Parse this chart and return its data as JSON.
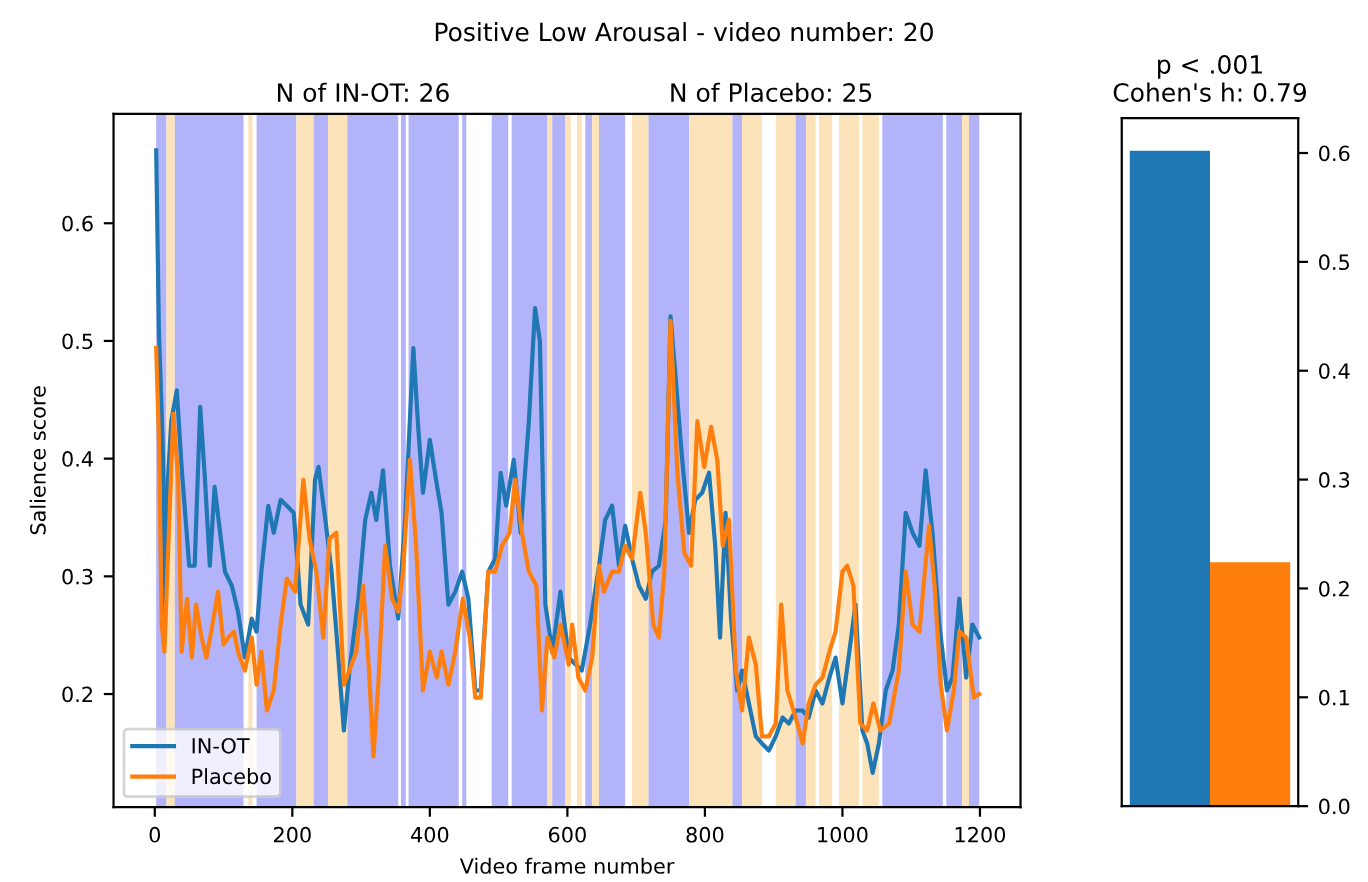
{
  "chart_data": [
    {
      "type": "line",
      "title": "Positive Low Arousal - video number: 20",
      "annotations": [
        "N of IN-OT: 26",
        "N of Placebo: 25"
      ],
      "xlabel": "Video frame number",
      "ylabel": "Salience score",
      "xlim": [
        -60,
        1259
      ],
      "ylim": [
        0.104,
        0.693
      ],
      "xticks": [
        0,
        200,
        400,
        600,
        800,
        1000,
        1200
      ],
      "yticks": [
        0.2,
        0.3,
        0.4,
        0.5,
        0.6
      ],
      "grid": false,
      "legend": "bottom left",
      "series": [
        {
          "name": "IN-OT",
          "color": "#1f77b4",
          "x": [
            2,
            6,
            12,
            15,
            19,
            24,
            32,
            39,
            50,
            58,
            66,
            73,
            80,
            87,
            95,
            102,
            112,
            121,
            131,
            141,
            148,
            155,
            165,
            173,
            183,
            192,
            202,
            212,
            223,
            233,
            238,
            248,
            257,
            267,
            275,
            283,
            296,
            306,
            315,
            322,
            332,
            342,
            354,
            364,
            376,
            383,
            390,
            400,
            409,
            417,
            427,
            437,
            447,
            456,
            466,
            474,
            485,
            495,
            503,
            511,
            522,
            532,
            544,
            553,
            560,
            568,
            578,
            590,
            602,
            612,
            621,
            633,
            646,
            655,
            665,
            675,
            684,
            694,
            704,
            714,
            723,
            733,
            743,
            750,
            757,
            767,
            777,
            786,
            796,
            806,
            815,
            822,
            830,
            838,
            847,
            854,
            864,
            874,
            883,
            893,
            903,
            913,
            922,
            932,
            942,
            951,
            961,
            971,
            981,
            990,
            1000,
            1010,
            1019,
            1029,
            1036,
            1044,
            1053,
            1063,
            1073,
            1082,
            1092,
            1102,
            1112,
            1121,
            1131,
            1141,
            1152,
            1160,
            1170,
            1180,
            1189,
            1199
          ],
          "values": [
            0.662,
            0.508,
            0.404,
            0.265,
            0.382,
            0.432,
            0.458,
            0.393,
            0.309,
            0.309,
            0.444,
            0.382,
            0.309,
            0.376,
            0.337,
            0.304,
            0.292,
            0.27,
            0.231,
            0.264,
            0.253,
            0.304,
            0.36,
            0.337,
            0.365,
            0.36,
            0.354,
            0.276,
            0.259,
            0.382,
            0.393,
            0.348,
            0.304,
            0.231,
            0.169,
            0.22,
            0.281,
            0.348,
            0.371,
            0.348,
            0.39,
            0.309,
            0.264,
            0.348,
            0.494,
            0.427,
            0.371,
            0.416,
            0.382,
            0.354,
            0.276,
            0.287,
            0.304,
            0.281,
            0.203,
            0.203,
            0.304,
            0.315,
            0.388,
            0.36,
            0.399,
            0.337,
            0.432,
            0.528,
            0.5,
            0.276,
            0.236,
            0.287,
            0.231,
            0.225,
            0.22,
            0.259,
            0.309,
            0.348,
            0.36,
            0.309,
            0.343,
            0.315,
            0.292,
            0.281,
            0.304,
            0.309,
            0.348,
            0.521,
            0.472,
            0.399,
            0.337,
            0.365,
            0.371,
            0.388,
            0.326,
            0.248,
            0.354,
            0.264,
            0.203,
            0.22,
            0.192,
            0.164,
            0.158,
            0.152,
            0.164,
            0.18,
            0.175,
            0.186,
            0.186,
            0.18,
            0.203,
            0.192,
            0.214,
            0.231,
            0.192,
            0.236,
            0.276,
            0.169,
            0.158,
            0.133,
            0.158,
            0.203,
            0.22,
            0.259,
            0.354,
            0.337,
            0.326,
            0.39,
            0.337,
            0.259,
            0.203,
            0.214,
            0.281,
            0.214,
            0.259,
            0.248
          ]
        },
        {
          "name": "Placebo",
          "color": "#ff7f0e",
          "x": [
            2,
            6,
            10,
            14,
            19,
            27,
            34,
            39,
            47,
            54,
            60,
            68,
            75,
            82,
            92,
            100,
            107,
            115,
            121,
            131,
            141,
            148,
            155,
            163,
            173,
            183,
            192,
            204,
            216,
            225,
            235,
            245,
            254,
            264,
            275,
            283,
            293,
            303,
            311,
            318,
            325,
            335,
            345,
            354,
            361,
            371,
            380,
            390,
            400,
            410,
            417,
            427,
            437,
            448,
            458,
            466,
            474,
            485,
            495,
            505,
            516,
            524,
            534,
            544,
            555,
            563,
            571,
            581,
            590,
            602,
            607,
            616,
            626,
            636,
            646,
            653,
            665,
            675,
            684,
            694,
            706,
            714,
            725,
            733,
            741,
            750,
            760,
            770,
            780,
            789,
            799,
            809,
            818,
            826,
            835,
            845,
            854,
            864,
            874,
            883,
            893,
            903,
            911,
            920,
            932,
            942,
            951,
            961,
            971,
            981,
            990,
            1000,
            1007,
            1016,
            1026,
            1036,
            1045,
            1055,
            1068,
            1082,
            1092,
            1102,
            1112,
            1126,
            1134,
            1143,
            1152,
            1162,
            1170,
            1180,
            1191,
            1199
          ],
          "values": [
            0.494,
            0.416,
            0.259,
            0.236,
            0.315,
            0.438,
            0.382,
            0.236,
            0.281,
            0.231,
            0.276,
            0.248,
            0.231,
            0.253,
            0.287,
            0.242,
            0.248,
            0.253,
            0.236,
            0.22,
            0.248,
            0.208,
            0.236,
            0.186,
            0.203,
            0.259,
            0.298,
            0.287,
            0.382,
            0.332,
            0.304,
            0.248,
            0.332,
            0.337,
            0.208,
            0.22,
            0.236,
            0.292,
            0.225,
            0.147,
            0.208,
            0.326,
            0.281,
            0.27,
            0.304,
            0.399,
            0.326,
            0.203,
            0.236,
            0.214,
            0.236,
            0.208,
            0.236,
            0.281,
            0.248,
            0.197,
            0.197,
            0.304,
            0.304,
            0.326,
            0.337,
            0.382,
            0.337,
            0.304,
            0.292,
            0.186,
            0.248,
            0.231,
            0.259,
            0.225,
            0.259,
            0.214,
            0.203,
            0.231,
            0.309,
            0.287,
            0.304,
            0.304,
            0.326,
            0.315,
            0.371,
            0.337,
            0.259,
            0.248,
            0.304,
            0.517,
            0.388,
            0.32,
            0.309,
            0.432,
            0.393,
            0.427,
            0.399,
            0.326,
            0.348,
            0.22,
            0.186,
            0.248,
            0.225,
            0.164,
            0.164,
            0.175,
            0.276,
            0.203,
            0.18,
            0.158,
            0.192,
            0.208,
            0.214,
            0.236,
            0.253,
            0.304,
            0.309,
            0.292,
            0.175,
            0.169,
            0.192,
            0.169,
            0.175,
            0.22,
            0.304,
            0.259,
            0.253,
            0.343,
            0.292,
            0.208,
            0.169,
            0.203,
            0.253,
            0.248,
            0.197,
            0.2
          ]
        }
      ],
      "bands": [
        {
          "axis": "x",
          "from": 2,
          "to": 17,
          "color": "#b3b3fa"
        },
        {
          "axis": "x",
          "from": 17,
          "to": 29,
          "color": "#fde3b9"
        },
        {
          "axis": "x",
          "from": 29,
          "to": 129,
          "color": "#b3b3fa"
        },
        {
          "axis": "x",
          "from": 136,
          "to": 142,
          "color": "#fde3b9"
        },
        {
          "axis": "x",
          "from": 148,
          "to": 206,
          "color": "#b3b3fa"
        },
        {
          "axis": "x",
          "from": 206,
          "to": 231,
          "color": "#fde3b9"
        },
        {
          "axis": "x",
          "from": 231,
          "to": 252,
          "color": "#b3b3fa"
        },
        {
          "axis": "x",
          "from": 252,
          "to": 280,
          "color": "#fde3b9"
        },
        {
          "axis": "x",
          "from": 280,
          "to": 354,
          "color": "#b3b3fa"
        },
        {
          "axis": "x",
          "from": 358,
          "to": 365,
          "color": "#b3b3fa"
        },
        {
          "axis": "x",
          "from": 369,
          "to": 442,
          "color": "#b3b3fa"
        },
        {
          "axis": "x",
          "from": 447,
          "to": 453,
          "color": "#b3b3fa"
        },
        {
          "axis": "x",
          "from": 490,
          "to": 514,
          "color": "#b3b3fa"
        },
        {
          "axis": "x",
          "from": 519,
          "to": 571,
          "color": "#b3b3fa"
        },
        {
          "axis": "x",
          "from": 571,
          "to": 578,
          "color": "#fde3b9"
        },
        {
          "axis": "x",
          "from": 578,
          "to": 597,
          "color": "#b3b3fa"
        },
        {
          "axis": "x",
          "from": 597,
          "to": 605,
          "color": "#fde3b9"
        },
        {
          "axis": "x",
          "from": 614,
          "to": 621,
          "color": "#fde3b9"
        },
        {
          "axis": "x",
          "from": 626,
          "to": 636,
          "color": "#b3b3fa"
        },
        {
          "axis": "x",
          "from": 636,
          "to": 646,
          "color": "#fde3b9"
        },
        {
          "axis": "x",
          "from": 646,
          "to": 684,
          "color": "#b3b3fa"
        },
        {
          "axis": "x",
          "from": 694,
          "to": 718,
          "color": "#fde3b9"
        },
        {
          "axis": "x",
          "from": 718,
          "to": 777,
          "color": "#b3b3fa"
        },
        {
          "axis": "x",
          "from": 777,
          "to": 840,
          "color": "#fde3b9"
        },
        {
          "axis": "x",
          "from": 840,
          "to": 854,
          "color": "#b3b3fa"
        },
        {
          "axis": "x",
          "from": 854,
          "to": 883,
          "color": "#fde3b9"
        },
        {
          "axis": "x",
          "from": 903,
          "to": 932,
          "color": "#fde3b9"
        },
        {
          "axis": "x",
          "from": 932,
          "to": 947,
          "color": "#b3b3fa"
        },
        {
          "axis": "x",
          "from": 947,
          "to": 961,
          "color": "#fde3b9"
        },
        {
          "axis": "x",
          "from": 966,
          "to": 985,
          "color": "#fde3b9"
        },
        {
          "axis": "x",
          "from": 995,
          "to": 1024,
          "color": "#fde3b9"
        },
        {
          "axis": "x",
          "from": 1029,
          "to": 1053,
          "color": "#fde3b9"
        },
        {
          "axis": "x",
          "from": 1058,
          "to": 1146,
          "color": "#b3b3fa"
        },
        {
          "axis": "x",
          "from": 1151,
          "to": 1174,
          "color": "#b3b3fa"
        },
        {
          "axis": "x",
          "from": 1174,
          "to": 1184,
          "color": "#fde3b9"
        },
        {
          "axis": "x",
          "from": 1184,
          "to": 1199,
          "color": "#b3b3fa"
        }
      ]
    },
    {
      "type": "bar",
      "title": "p < .001\nCohen's h: 0.79",
      "categories": [
        null,
        null
      ],
      "values": [
        0.602,
        0.224
      ],
      "colors": [
        "#1f77b4",
        "#ff7f0e"
      ],
      "ylim": [
        0,
        0.632
      ],
      "yticks": [
        {
          "value": 0,
          "label": "0.0"
        },
        0.1,
        0.2,
        0.3,
        0.4,
        0.5,
        0.6
      ],
      "tick_labels": "y"
    }
  ]
}
